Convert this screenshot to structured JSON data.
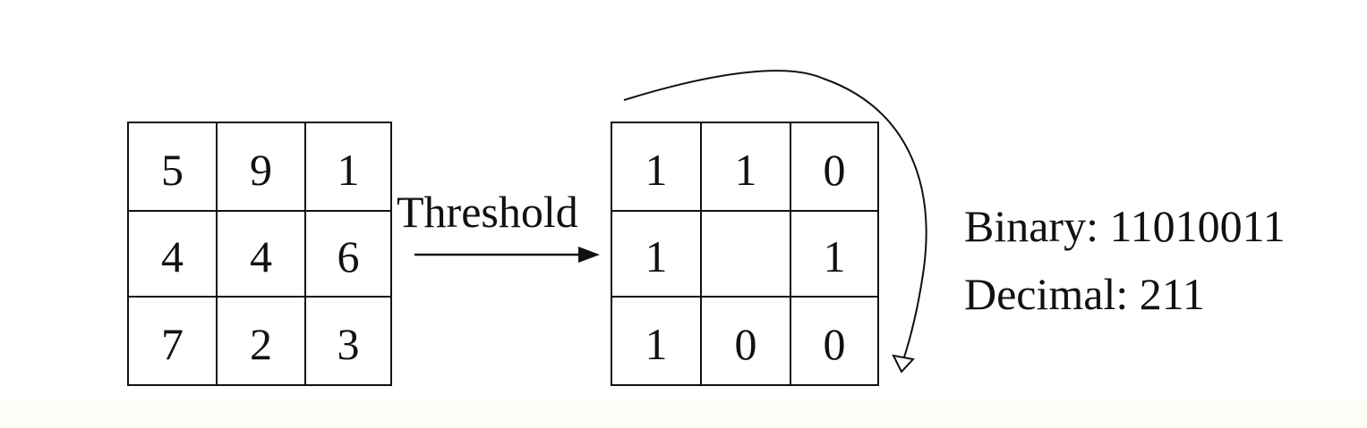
{
  "input_grid": {
    "cells": [
      "5",
      "9",
      "1",
      "4",
      "4",
      "6",
      "7",
      "2",
      "3"
    ]
  },
  "arrow_label": "Threshold",
  "output_grid": {
    "cells": [
      "1",
      "1",
      "0",
      "1",
      "",
      "1",
      "1",
      "0",
      "0"
    ]
  },
  "result": {
    "binary_label": "Binary:",
    "binary_value": "11010011",
    "decimal_label": "Decimal:",
    "decimal_value": "211"
  }
}
